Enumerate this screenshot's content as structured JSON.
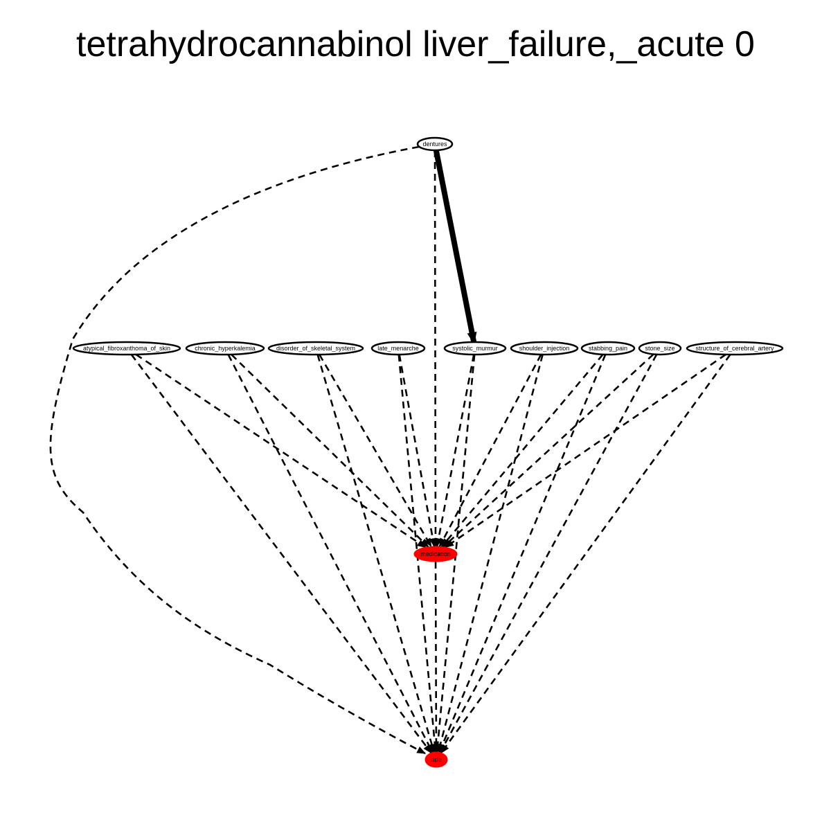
{
  "title": "tetrahydrocannabinol liver_failure,_acute 0",
  "colors": {
    "background": "#ffffff",
    "stroke": "#000000",
    "highlight": "#ff0000"
  },
  "nodes": [
    {
      "id": "dentures",
      "label": "dentures",
      "fill": "#ffffff"
    },
    {
      "id": "atypical_fibroxanthoma_of_skin",
      "label": "atypical_fibroxanthoma_of_skin",
      "fill": "#ffffff"
    },
    {
      "id": "chronic_hyperkalemia",
      "label": "chronic_hyperkalemia",
      "fill": "#ffffff"
    },
    {
      "id": "disorder_of_skeletal_system",
      "label": "disorder_of_skeletal_system",
      "fill": "#ffffff"
    },
    {
      "id": "late_menarche",
      "label": "late_menarche",
      "fill": "#ffffff"
    },
    {
      "id": "systolic_murmur",
      "label": "systolic_murmur",
      "fill": "#ffffff"
    },
    {
      "id": "shoulder_injection",
      "label": "shoulder_injection",
      "fill": "#ffffff"
    },
    {
      "id": "stabbing_pain",
      "label": "stabbing_pain",
      "fill": "#ffffff"
    },
    {
      "id": "stone_size",
      "label": "stone_size",
      "fill": "#ffffff"
    },
    {
      "id": "structure_of_cerebral_artery",
      "label": "structure_of_cerebral_artery",
      "fill": "#ffffff"
    },
    {
      "id": "medication",
      "label": "medication",
      "fill": "#ff0000"
    },
    {
      "id": "ade",
      "label": "ade",
      "fill": "#ff0000"
    }
  ],
  "edges": [
    {
      "from": "dentures",
      "to": "systolic_murmur",
      "style": "solid"
    },
    {
      "from": "dentures",
      "to": "medication",
      "style": "dashed"
    },
    {
      "from": "dentures",
      "to": "ade",
      "style": "dashed"
    },
    {
      "from": "atypical_fibroxanthoma_of_skin",
      "to": "medication",
      "style": "dashed"
    },
    {
      "from": "atypical_fibroxanthoma_of_skin",
      "to": "ade",
      "style": "dashed"
    },
    {
      "from": "chronic_hyperkalemia",
      "to": "medication",
      "style": "dashed"
    },
    {
      "from": "chronic_hyperkalemia",
      "to": "ade",
      "style": "dashed"
    },
    {
      "from": "disorder_of_skeletal_system",
      "to": "medication",
      "style": "dashed"
    },
    {
      "from": "disorder_of_skeletal_system",
      "to": "ade",
      "style": "dashed"
    },
    {
      "from": "late_menarche",
      "to": "medication",
      "style": "dashed"
    },
    {
      "from": "late_menarche",
      "to": "ade",
      "style": "dashed"
    },
    {
      "from": "systolic_murmur",
      "to": "medication",
      "style": "dashed"
    },
    {
      "from": "systolic_murmur",
      "to": "ade",
      "style": "dashed"
    },
    {
      "from": "shoulder_injection",
      "to": "medication",
      "style": "dashed"
    },
    {
      "from": "shoulder_injection",
      "to": "ade",
      "style": "dashed"
    },
    {
      "from": "stabbing_pain",
      "to": "medication",
      "style": "dashed"
    },
    {
      "from": "stabbing_pain",
      "to": "ade",
      "style": "dashed"
    },
    {
      "from": "stone_size",
      "to": "medication",
      "style": "dashed"
    },
    {
      "from": "stone_size",
      "to": "ade",
      "style": "dashed"
    },
    {
      "from": "structure_of_cerebral_artery",
      "to": "medication",
      "style": "dashed"
    },
    {
      "from": "structure_of_cerebral_artery",
      "to": "ade",
      "style": "dashed"
    },
    {
      "from": "medication",
      "to": "ade",
      "style": "dashed"
    }
  ]
}
